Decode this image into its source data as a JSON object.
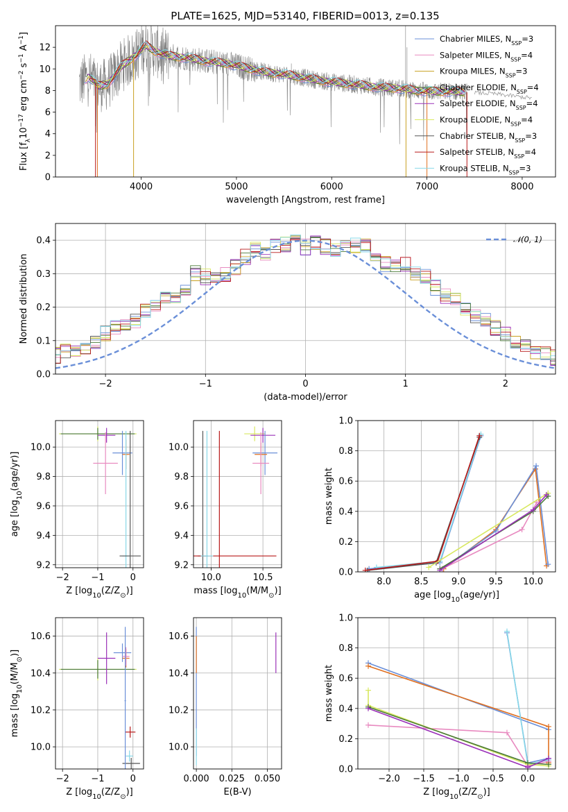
{
  "title": "PLATE=1625, MJD=53140, FIBERID=0013, z=0.135",
  "colors": {
    "chabrier_miles": "#6a8fd8",
    "salpeter_miles": "#e88ac0",
    "kroupa_miles": "#c8a020",
    "chabrier_elodie": "#4a7a38",
    "salpeter_elodie": "#9a30b8",
    "kroupa_elodie": "#d8e860",
    "chabrier_stelib": "#555555",
    "salpeter_stelib": "#b81818",
    "kroupa_stelib": "#88d8e8",
    "data_line": "#808080",
    "normal_curve": "#6a8fd8",
    "model_orange": "#e07020"
  },
  "chart_data": [
    {
      "id": "spectrum",
      "type": "line",
      "title": "PLATE=1625, MJD=53140, FIBERID=0013, z=0.135",
      "xlabel": "wavelength [Angstrom, rest frame]",
      "ylabel": "Flux [f$_\\lambda$10$^{-17}$ erg cm$^{-2}$ s$^{-1}$ A$^{-1}$]",
      "ylabel_parts": [
        "Flux [f",
        "λ",
        "10",
        "−17",
        " erg cm",
        "−2",
        " s",
        "−1",
        " A",
        "−1",
        "]"
      ],
      "xlim": [
        3100,
        8350
      ],
      "ylim": [
        0,
        14
      ],
      "xticks": [
        4000,
        5000,
        6000,
        7000,
        8000
      ],
      "yticks": [
        0,
        2,
        4,
        6,
        8,
        10,
        12
      ],
      "continuum": {
        "x": [
          3350,
          3450,
          3550,
          3650,
          3800,
          3950,
          4050,
          4150,
          4300,
          4500,
          4700,
          4900,
          5100,
          5300,
          5500,
          5700,
          5900,
          6100,
          6300,
          6500,
          6700,
          6900,
          7100,
          7300,
          7500,
          7700,
          7900,
          8100
        ],
        "y": [
          8.6,
          9.3,
          8.4,
          8.6,
          10.3,
          11.3,
          12.2,
          11.6,
          11.2,
          11.0,
          10.7,
          10.5,
          10.1,
          9.7,
          9.5,
          9.2,
          8.9,
          8.7,
          8.5,
          8.3,
          8.2,
          8.0,
          7.9,
          7.9,
          7.8,
          7.7,
          7.5,
          7.3
        ]
      },
      "legend": [
        {
          "label": "Chabrier MILES, ",
          "n": "3",
          "key": "chabrier_miles"
        },
        {
          "label": "Salpeter MILES, ",
          "n": "4",
          "key": "salpeter_miles"
        },
        {
          "label": "Kroupa MILES, ",
          "n": "3",
          "key": "kroupa_miles"
        },
        {
          "label": "Chabrier ELODIE, ",
          "n": "4",
          "key": "chabrier_elodie"
        },
        {
          "label": "Salpeter ELODIE, ",
          "n": "4",
          "key": "salpeter_elodie"
        },
        {
          "label": "Kroupa ELODIE, ",
          "n": "4",
          "key": "kroupa_elodie"
        },
        {
          "label": "Chabrier STELIB, ",
          "n": "3",
          "key": "chabrier_stelib"
        },
        {
          "label": "Salpeter STELIB, ",
          "n": "4",
          "key": "salpeter_stelib"
        },
        {
          "label": "Kroupa STELIB, ",
          "n": "3",
          "key": "kroupa_stelib"
        }
      ],
      "legend_placement": "right",
      "legend_n_prefix": "N",
      "legend_n_sub": "SSP"
    },
    {
      "id": "residuals",
      "type": "line",
      "xlabel": "(data-model)/error",
      "ylabel": "Normed distribution",
      "xlim": [
        -2.5,
        2.5
      ],
      "ylim": [
        0,
        0.45
      ],
      "xticks": [
        -2,
        -1,
        0,
        1,
        2
      ],
      "yticks": [
        0.0,
        0.1,
        0.2,
        0.3,
        0.4
      ],
      "grid": true,
      "bin_width": 0.1,
      "reference_curve": {
        "label": "𝒩(0, 1)",
        "mean": 0,
        "sigma": 1
      },
      "legend_placement": "top-right",
      "hist_bins_mean": [
        0.04,
        0.045,
        0.055,
        0.065,
        0.07,
        0.085,
        0.095,
        0.12,
        0.14,
        0.15,
        0.16,
        0.19,
        0.2,
        0.22,
        0.23,
        0.26,
        0.3,
        0.29,
        0.28,
        0.3,
        0.32,
        0.35,
        0.37,
        0.36,
        0.38,
        0.39,
        0.4,
        0.38,
        0.395,
        0.38,
        0.375,
        0.39,
        0.385,
        0.38,
        0.36,
        0.33,
        0.32,
        0.33,
        0.3,
        0.29,
        0.26,
        0.23,
        0.22,
        0.19,
        0.17,
        0.16,
        0.14,
        0.12,
        0.1,
        0.08,
        0.07,
        0.065,
        0.05,
        0.045,
        0.04
      ]
    },
    {
      "id": "age_vs_Z",
      "type": "scatter",
      "xlabel": "Z [log$_{10}$(Z/Z$_\\odot$)]",
      "ylabel": "age  [log$_{10}$(age/yr)]",
      "xlim": [
        -2.2,
        0.3
      ],
      "ylim": [
        9.18,
        10.18
      ],
      "xticks": [
        -2,
        -1,
        0
      ],
      "yticks": [
        9.2,
        9.4,
        9.6,
        9.8,
        10.0
      ],
      "grid": true,
      "points": [
        {
          "key": "kroupa_elodie",
          "x": -1.0,
          "y": 10.09,
          "xerr": 1.1,
          "yerr": 0.05
        },
        {
          "key": "chabrier_elodie",
          "x": -1.0,
          "y": 10.09,
          "xerr": 1.05,
          "yerr": 0.04
        },
        {
          "key": "salpeter_elodie",
          "x": -0.75,
          "y": 10.08,
          "xerr": 0.25,
          "yerr": 0.05
        },
        {
          "key": "salpeter_miles",
          "x": -0.78,
          "y": 9.89,
          "xerr": 0.35,
          "yerr": 0.21
        },
        {
          "key": "chabrier_miles",
          "x": -0.3,
          "y": 9.96,
          "xerr": 0.28,
          "yerr": 0.15
        },
        {
          "key": "model_orange",
          "x": -0.2,
          "y": 9.95,
          "xerr": 0.1,
          "yerr": 0.1
        },
        {
          "key": "kroupa_stelib",
          "x": -0.2,
          "y": 9.26,
          "xerr": 0.1,
          "yerr": 0.85
        },
        {
          "key": "chabrier_stelib",
          "x": -0.08,
          "y": 9.26,
          "xerr": 0.3,
          "yerr": 0.85
        }
      ]
    },
    {
      "id": "age_vs_mass",
      "type": "scatter",
      "xlabel": "mass [log$_{10}$(M/M$_\\odot$)]",
      "ylabel": "",
      "xlim": [
        9.83,
        10.68
      ],
      "ylim": [
        9.18,
        10.18
      ],
      "xticks": [
        10.0,
        10.5
      ],
      "yticks": [
        9.2,
        9.4,
        9.6,
        9.8,
        10.0
      ],
      "grid": true,
      "points": [
        {
          "key": "kroupa_elodie",
          "x": 10.42,
          "y": 10.09,
          "xerr": 0.1,
          "yerr": 0.05
        },
        {
          "key": "salpeter_elodie",
          "x": 10.5,
          "y": 10.08,
          "xerr": 0.12,
          "yerr": 0.05
        },
        {
          "key": "chabrier_miles",
          "x": 10.52,
          "y": 9.96,
          "xerr": 0.12,
          "yerr": 0.15
        },
        {
          "key": "model_orange",
          "x": 10.48,
          "y": 9.95,
          "xerr": 0.06,
          "yerr": 0.08
        },
        {
          "key": "salpeter_miles",
          "x": 10.48,
          "y": 9.89,
          "xerr": 0.08,
          "yerr": 0.21
        },
        {
          "key": "chabrier_stelib",
          "x": 9.92,
          "y": 9.26,
          "xerr": 0.05,
          "yerr": 0.85
        },
        {
          "key": "salpeter_stelib",
          "x": 10.08,
          "y": 9.26,
          "xerr": 0.55,
          "yerr": 0.85
        },
        {
          "key": "kroupa_stelib",
          "x": 9.96,
          "y": 9.26,
          "xerr": 0.06,
          "yerr": 0.85
        }
      ]
    },
    {
      "id": "massweight_vs_age",
      "type": "line",
      "xlabel": "age  [log$_{10}$(age/yr)]",
      "ylabel": "mass weight",
      "xlim": [
        7.65,
        10.3
      ],
      "ylim": [
        0,
        1
      ],
      "xticks": [
        8.0,
        8.5,
        9.0,
        9.5,
        10.0
      ],
      "yticks": [
        0.0,
        0.2,
        0.4,
        0.6,
        0.8,
        1.0
      ],
      "grid": true,
      "series": [
        {
          "key": "chabrier_miles",
          "x": [
            7.8,
            8.75,
            9.3
          ],
          "y": [
            0.02,
            0.06,
            0.9
          ]
        },
        {
          "key": "kroupa_stelib",
          "x": [
            7.9,
            8.75,
            9.3
          ],
          "y": [
            0.03,
            0.07,
            0.91
          ]
        },
        {
          "key": "chabrier_stelib",
          "x": [
            7.78,
            8.7,
            9.28
          ],
          "y": [
            0.01,
            0.06,
            0.89
          ]
        },
        {
          "key": "salpeter_stelib",
          "x": [
            7.75,
            8.72,
            9.28
          ],
          "y": [
            0.01,
            0.07,
            0.9
          ]
        },
        {
          "key": "model_orange",
          "x": [
            8.8,
            9.5,
            10.03,
            10.18
          ],
          "y": [
            0.02,
            0.28,
            0.68,
            0.04
          ]
        },
        {
          "key": "chabrier_miles",
          "x": [
            8.78,
            9.5,
            10.04,
            10.2
          ],
          "y": [
            0.02,
            0.27,
            0.7,
            0.05
          ]
        },
        {
          "key": "salpeter_miles",
          "x": [
            8.78,
            9.85,
            10.05
          ],
          "y": [
            0.02,
            0.28,
            0.46
          ]
        },
        {
          "key": "kroupa_elodie",
          "x": [
            8.6,
            10.2
          ],
          "y": [
            0.03,
            0.52
          ]
        },
        {
          "key": "chabrier_elodie",
          "x": [
            8.75,
            10.0,
            10.2
          ],
          "y": [
            0.02,
            0.4,
            0.5
          ]
        },
        {
          "key": "salpeter_elodie",
          "x": [
            8.75,
            10.0,
            10.18
          ],
          "y": [
            0.01,
            0.41,
            0.51
          ]
        }
      ]
    },
    {
      "id": "mass_vs_Z",
      "type": "scatter",
      "xlabel": "Z [log$_{10}$(Z/Z$_\\odot$)]",
      "ylabel": "mass [log$_{10}$(M/M$_\\odot$)]",
      "xlim": [
        -2.2,
        0.3
      ],
      "ylim": [
        9.88,
        10.7
      ],
      "xticks": [
        -2,
        -1,
        0
      ],
      "yticks": [
        10.0,
        10.2,
        10.4,
        10.6
      ],
      "grid": true,
      "points": [
        {
          "key": "kroupa_elodie",
          "x": -1.0,
          "y": 10.42,
          "xerr": 1.1,
          "yerr": 0.06
        },
        {
          "key": "chabrier_elodie",
          "x": -1.0,
          "y": 10.42,
          "xerr": 1.05,
          "yerr": 0.05
        },
        {
          "key": "salpeter_elodie",
          "x": -0.75,
          "y": 10.48,
          "xerr": 0.25,
          "yerr": 0.14
        },
        {
          "key": "chabrier_miles",
          "x": -0.3,
          "y": 10.51,
          "xerr": 0.25,
          "yerr": 0.05
        },
        {
          "key": "model_orange",
          "x": -0.2,
          "y": 10.48,
          "xerr": 0.1,
          "yerr": 0.05
        },
        {
          "key": "salpeter_miles",
          "x": -0.2,
          "y": 10.49,
          "xerr": 0.1,
          "yerr": 0.05
        },
        {
          "key": "salpeter_stelib",
          "x": -0.08,
          "y": 10.08,
          "xerr": 0.15,
          "yerr": 0.03
        },
        {
          "key": "kroupa_stelib",
          "x": -0.1,
          "y": 9.95,
          "xerr": 0.1,
          "yerr": 0.03
        },
        {
          "key": "chabrier_stelib",
          "x": -0.05,
          "y": 9.91,
          "xerr": 0.25,
          "yerr": 0.03
        },
        {
          "key": "chabrier_miles",
          "x": -0.22,
          "y": 10.25,
          "xerr": 0.02,
          "yerr": 0.4
        }
      ]
    },
    {
      "id": "ebv_vs_mass",
      "type": "scatter",
      "xlabel": "E(B-V)",
      "ylabel": "",
      "xlim": [
        -0.002,
        0.06
      ],
      "ylim": [
        9.88,
        10.7
      ],
      "xticks": [
        0.0,
        0.025,
        0.05
      ],
      "xtick_labels": [
        "0.000",
        "0.025",
        "0.050"
      ],
      "yticks": [
        10.0,
        10.2,
        10.4,
        10.6
      ],
      "grid": true,
      "points": [
        {
          "key": "chabrier_miles",
          "x": 0.0,
          "y": 10.3,
          "xerr": 0.0,
          "yerr": 0.35
        },
        {
          "key": "model_orange",
          "x": 0.0,
          "y": 10.5,
          "xerr": 0.0,
          "yerr": 0.1
        },
        {
          "key": "kroupa_stelib",
          "x": 0.0,
          "y": 10.0,
          "xerr": 0.0,
          "yerr": 0.1
        },
        {
          "key": "salpeter_elodie",
          "x": 0.056,
          "y": 10.51,
          "xerr": 0.0,
          "yerr": 0.11
        }
      ]
    },
    {
      "id": "massweight_vs_Z",
      "type": "line",
      "xlabel": "Z [log$_{10}$(Z/Z$_\\odot$)]",
      "ylabel": "mass weight",
      "xlim": [
        -2.45,
        0.4
      ],
      "ylim": [
        0,
        1
      ],
      "xticks": [
        -2.0,
        -1.5,
        -1.0,
        -0.5,
        0.0
      ],
      "yticks": [
        0.0,
        0.2,
        0.4,
        0.6,
        0.8,
        1.0
      ],
      "grid": true,
      "series": [
        {
          "key": "chabrier_miles",
          "x": [
            -2.3,
            0.3
          ],
          "y": [
            0.7,
            0.26
          ]
        },
        {
          "key": "model_orange",
          "x": [
            -2.3,
            0.3,
            0.3
          ],
          "y": [
            0.68,
            0.28,
            0.04
          ]
        },
        {
          "key": "chabrier_miles",
          "x": [
            -0.3,
            0.0,
            0.3
          ],
          "y": [
            0.9,
            0.04,
            0.07
          ]
        },
        {
          "key": "kroupa_stelib",
          "x": [
            -0.3,
            0.0,
            0.3
          ],
          "y": [
            0.91,
            0.03,
            0.06
          ]
        },
        {
          "key": "salpeter_miles",
          "x": [
            -2.3,
            -0.3,
            0.0,
            0.3
          ],
          "y": [
            0.29,
            0.24,
            0.02,
            0.05
          ]
        },
        {
          "key": "kroupa_elodie",
          "x": [
            -2.3,
            -2.3,
            0.0,
            0.3
          ],
          "y": [
            0.52,
            0.42,
            0.03,
            0.02
          ]
        },
        {
          "key": "chabrier_elodie",
          "x": [
            -2.3,
            0.0,
            0.3
          ],
          "y": [
            0.41,
            0.04,
            0.03
          ]
        },
        {
          "key": "salpeter_elodie",
          "x": [
            -2.3,
            0.0,
            0.3
          ],
          "y": [
            0.4,
            0.01,
            0.07
          ]
        }
      ]
    }
  ]
}
